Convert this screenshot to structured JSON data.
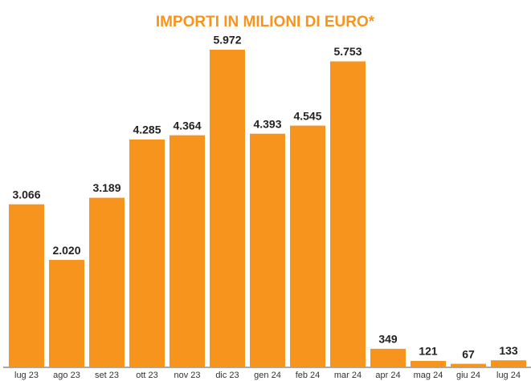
{
  "chart_data": {
    "type": "bar",
    "title": "IMPORTI IN MILIONI DI EURO*",
    "categories": [
      "lug 23",
      "ago 23",
      "set 23",
      "ott 23",
      "nov 23",
      "dic 23",
      "gen 24",
      "feb 24",
      "mar 24",
      "apr 24",
      "mag 24",
      "giu 24",
      "lug 24"
    ],
    "values": [
      3066,
      2020,
      3189,
      4285,
      4364,
      5972,
      4393,
      4545,
      5753,
      349,
      121,
      67,
      133
    ],
    "value_labels": [
      "3.066",
      "2.020",
      "3.189",
      "4.285",
      "4.364",
      "5.972",
      "4.393",
      "4.545",
      "5.753",
      "349",
      "121",
      "67",
      "133"
    ],
    "color": "#f7941d"
  }
}
